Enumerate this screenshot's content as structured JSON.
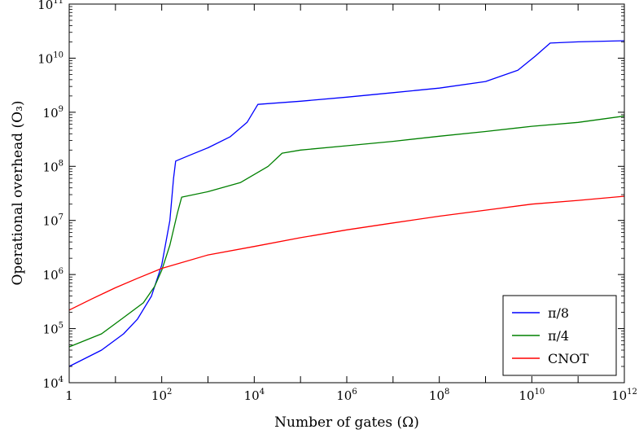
{
  "chart_data": {
    "type": "line",
    "xlabel": "Number of gates (Ω)",
    "ylabel": "Operational overhead (O₃)",
    "x_scale": "log",
    "y_scale": "log",
    "xlim": [
      1,
      1000000000000
    ],
    "ylim": [
      10000,
      100000000000
    ],
    "grid": false,
    "legend_position": "lower-right",
    "x_ticks": [
      {
        "base": "1",
        "exp": ""
      },
      {
        "base": "10",
        "exp": "2"
      },
      {
        "base": "10",
        "exp": "4"
      },
      {
        "base": "10",
        "exp": "6"
      },
      {
        "base": "10",
        "exp": "8"
      },
      {
        "base": "10",
        "exp": "10"
      },
      {
        "base": "10",
        "exp": "12"
      }
    ],
    "y_ticks": [
      {
        "base": "10",
        "exp": "4"
      },
      {
        "base": "10",
        "exp": "5"
      },
      {
        "base": "10",
        "exp": "6"
      },
      {
        "base": "10",
        "exp": "7"
      },
      {
        "base": "10",
        "exp": "8"
      },
      {
        "base": "10",
        "exp": "9"
      },
      {
        "base": "10",
        "exp": "10"
      },
      {
        "base": "10",
        "exp": "11"
      }
    ],
    "series": [
      {
        "name": "π/8",
        "color": "#0000ff",
        "points": [
          [
            1,
            20000
          ],
          [
            5,
            40000
          ],
          [
            15,
            80000
          ],
          [
            30,
            150000
          ],
          [
            60,
            400000
          ],
          [
            100,
            1500000
          ],
          [
            150,
            10000000
          ],
          [
            180,
            60000000
          ],
          [
            200,
            125000000
          ],
          [
            400,
            160000000
          ],
          [
            1000,
            220000000
          ],
          [
            3000,
            350000000
          ],
          [
            7000,
            650000000
          ],
          [
            12000,
            1400000000
          ],
          [
            100000,
            1600000000
          ],
          [
            1000000,
            1900000000
          ],
          [
            10000000,
            2300000000
          ],
          [
            100000000,
            2800000000
          ],
          [
            1000000000,
            3700000000
          ],
          [
            5000000000,
            6000000000
          ],
          [
            12000000000,
            11000000000
          ],
          [
            25000000000,
            19000000000
          ],
          [
            100000000000,
            20000000000
          ],
          [
            1000000000000,
            21000000000
          ]
        ]
      },
      {
        "name": "π/4",
        "color": "#008000",
        "points": [
          [
            1,
            46000
          ],
          [
            5,
            80000
          ],
          [
            15,
            160000
          ],
          [
            40,
            300000
          ],
          [
            70,
            600000
          ],
          [
            100,
            1200000
          ],
          [
            150,
            3500000
          ],
          [
            220,
            14000000
          ],
          [
            270,
            27000000
          ],
          [
            1000,
            34000000
          ],
          [
            5000,
            50000000
          ],
          [
            20000,
            100000000
          ],
          [
            40000,
            175000000
          ],
          [
            100000,
            200000000
          ],
          [
            1000000,
            240000000
          ],
          [
            10000000,
            290000000
          ],
          [
            100000000,
            360000000
          ],
          [
            1000000000,
            440000000
          ],
          [
            10000000000,
            550000000
          ],
          [
            100000000000,
            650000000
          ],
          [
            1000000000000,
            850000000
          ]
        ]
      },
      {
        "name": "CNOT",
        "color": "#ff0000",
        "points": [
          [
            1,
            220000
          ],
          [
            3,
            350000
          ],
          [
            10,
            570000
          ],
          [
            30,
            850000
          ],
          [
            100,
            1300000
          ],
          [
            1000,
            2300000
          ],
          [
            10000,
            3300000
          ],
          [
            100000,
            4800000
          ],
          [
            1000000,
            6700000
          ],
          [
            10000000,
            9000000
          ],
          [
            100000000,
            12000000
          ],
          [
            1000000000,
            15500000
          ],
          [
            10000000000,
            20000000
          ],
          [
            100000000000,
            23500000
          ],
          [
            1000000000000,
            28000000
          ]
        ]
      }
    ]
  }
}
